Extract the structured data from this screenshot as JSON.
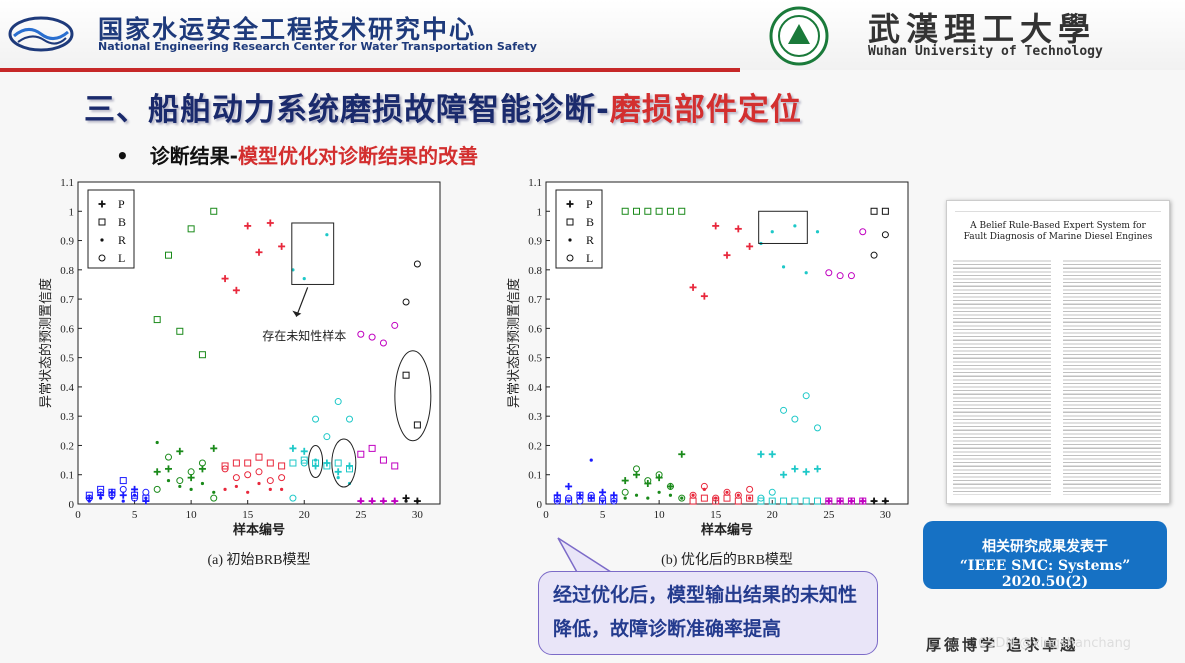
{
  "header": {
    "center_cn": "国家水运安全工程技术研究中心",
    "center_en": "National Engineering Research Center for Water Transportation Safety",
    "univ_cn": "武漢理工大學",
    "univ_en": "Wuhan University of Technology"
  },
  "slide": {
    "title_main": "三、船舶动力系统磨损故障智能诊断-",
    "title_highlight": "磨损部件定位",
    "bullet_symbol": "•",
    "bullet_main": "诊断结果-",
    "bullet_highlight": "模型优化对诊断结果的改善"
  },
  "chart_data": [
    {
      "type": "scatter",
      "caption": "(a)  初始BRB模型",
      "xlabel": "样本编号",
      "ylabel": "异常状态的预测置信度",
      "xlim": [
        0,
        32
      ],
      "ylim": [
        0,
        1.1
      ],
      "xticks": [
        "0",
        "5",
        "10",
        "15",
        "20",
        "25",
        "30"
      ],
      "yticks": [
        "0",
        "0.1",
        "0.2",
        "0.3",
        "0.4",
        "0.5",
        "0.6",
        "0.7",
        "0.8",
        "0.9",
        "1",
        "1.1"
      ],
      "legend": [
        "P",
        "B",
        "R",
        "L"
      ],
      "annotation": "存在未知性样本",
      "series": [
        {
          "name": "P",
          "color": "#1a1aff",
          "x": [
            1,
            2,
            3,
            4,
            5,
            6
          ],
          "y": [
            0.02,
            0.03,
            0.04,
            0.03,
            0.05,
            0.01
          ]
        },
        {
          "name": "B",
          "color": "#1a1aff",
          "x": [
            1,
            2,
            3,
            4,
            5,
            6
          ],
          "y": [
            0.03,
            0.05,
            0.04,
            0.08,
            0.03,
            0.02
          ]
        },
        {
          "name": "R",
          "color": "#1a1aff",
          "x": [
            1,
            2,
            3,
            4,
            5,
            6
          ],
          "y": [
            0.01,
            0.02,
            0.02,
            0.01,
            0.03,
            0.02
          ]
        },
        {
          "name": "L",
          "color": "#1a1aff",
          "x": [
            1,
            2,
            3,
            4,
            5,
            6
          ],
          "y": [
            0.02,
            0.04,
            0.03,
            0.05,
            0.02,
            0.04
          ]
        },
        {
          "name": "P",
          "color": "#1a8a1a",
          "x": [
            7,
            8,
            9,
            10,
            11,
            12
          ],
          "y": [
            0.11,
            0.12,
            0.18,
            0.09,
            0.12,
            0.19
          ]
        },
        {
          "name": "B",
          "color": "#1a8a1a",
          "x": [
            7,
            8,
            9,
            10,
            11,
            12
          ],
          "y": [
            0.63,
            0.85,
            0.59,
            0.94,
            0.51,
            1.0
          ]
        },
        {
          "name": "R",
          "color": "#1a8a1a",
          "x": [
            7,
            8,
            9,
            10,
            11,
            12
          ],
          "y": [
            0.21,
            0.08,
            0.06,
            0.05,
            0.07,
            0.04
          ]
        },
        {
          "name": "L",
          "color": "#1a8a1a",
          "x": [
            7,
            8,
            9,
            10,
            11,
            12
          ],
          "y": [
            0.05,
            0.16,
            0.08,
            0.11,
            0.14,
            0.02
          ]
        },
        {
          "name": "P",
          "color": "#e8283c",
          "x": [
            13,
            14,
            15,
            16,
            17,
            18
          ],
          "y": [
            0.77,
            0.73,
            0.95,
            0.86,
            0.96,
            0.88
          ]
        },
        {
          "name": "B",
          "color": "#e8283c",
          "x": [
            13,
            14,
            15,
            16,
            17,
            18
          ],
          "y": [
            0.13,
            0.14,
            0.14,
            0.16,
            0.14,
            0.13
          ]
        },
        {
          "name": "R",
          "color": "#e8283c",
          "x": [
            13,
            14,
            15,
            16,
            17,
            18
          ],
          "y": [
            0.05,
            0.06,
            0.04,
            0.07,
            0.05,
            0.05
          ]
        },
        {
          "name": "L",
          "color": "#e8283c",
          "x": [
            13,
            14,
            15,
            16,
            17,
            18
          ],
          "y": [
            0.12,
            0.09,
            0.1,
            0.11,
            0.08,
            0.09
          ]
        },
        {
          "name": "P",
          "color": "#1ec8c8",
          "x": [
            19,
            20,
            21,
            22,
            23,
            24
          ],
          "y": [
            0.19,
            0.18,
            0.13,
            0.14,
            0.11,
            0.13
          ]
        },
        {
          "name": "B",
          "color": "#1ec8c8",
          "x": [
            19,
            20,
            21,
            22,
            23,
            24
          ],
          "y": [
            0.14,
            0.15,
            0.14,
            0.13,
            0.14,
            0.12
          ]
        },
        {
          "name": "R",
          "color": "#1ec8c8",
          "x": [
            19,
            20,
            21,
            22,
            23,
            24
          ],
          "y": [
            0.8,
            0.77,
            0.15,
            0.92,
            0.09,
            0.07
          ]
        },
        {
          "name": "L",
          "color": "#1ec8c8",
          "x": [
            19,
            20,
            21,
            22,
            23,
            24
          ],
          "y": [
            0.02,
            0.14,
            0.29,
            0.23,
            0.35,
            0.29
          ]
        },
        {
          "name": "P",
          "color": "#c000c0",
          "x": [
            25,
            26,
            27,
            28
          ],
          "y": [
            0.01,
            0.01,
            0.01,
            0.01
          ]
        },
        {
          "name": "B",
          "color": "#c000c0",
          "x": [
            25,
            26,
            27,
            28
          ],
          "y": [
            0.17,
            0.19,
            0.15,
            0.13
          ]
        },
        {
          "name": "R",
          "color": "#c000c0",
          "x": [
            25,
            26,
            27,
            28
          ],
          "y": [
            0.01,
            0.01,
            0.01,
            0.01
          ]
        },
        {
          "name": "L",
          "color": "#c000c0",
          "x": [
            25,
            26,
            27,
            28
          ],
          "y": [
            0.58,
            0.57,
            0.55,
            0.61
          ]
        },
        {
          "name": "P",
          "color": "#111111",
          "x": [
            29,
            30
          ],
          "y": [
            0.02,
            0.01
          ]
        },
        {
          "name": "B",
          "color": "#111111",
          "x": [
            29,
            30
          ],
          "y": [
            0.44,
            0.27
          ]
        },
        {
          "name": "R",
          "color": "#111111",
          "x": [
            29,
            30
          ],
          "y": [
            0.01,
            0.01
          ]
        },
        {
          "name": "L",
          "color": "#111111",
          "x": [
            29,
            30
          ],
          "y": [
            0.69,
            0.82
          ]
        }
      ]
    },
    {
      "type": "scatter",
      "caption": "(b)  优化后的BRB模型",
      "xlabel": "样本编号",
      "ylabel": "异常状态的预测置信度",
      "xlim": [
        0,
        32
      ],
      "ylim": [
        0,
        1.1
      ],
      "xticks": [
        "0",
        "5",
        "10",
        "15",
        "20",
        "25",
        "30"
      ],
      "yticks": [
        "0",
        "0.1",
        "0.2",
        "0.3",
        "0.4",
        "0.5",
        "0.6",
        "0.7",
        "0.8",
        "0.9",
        "1",
        "1.1"
      ],
      "legend": [
        "P",
        "B",
        "R",
        "L"
      ],
      "series": [
        {
          "name": "P",
          "color": "#1a1aff",
          "x": [
            1,
            2,
            3,
            4,
            5,
            6
          ],
          "y": [
            0.03,
            0.06,
            0.03,
            0.02,
            0.04,
            0.03
          ]
        },
        {
          "name": "B",
          "color": "#1a1aff",
          "x": [
            1,
            2,
            3,
            4,
            5,
            6
          ],
          "y": [
            0.02,
            0.01,
            0.03,
            0.02,
            0.01,
            0.02
          ]
        },
        {
          "name": "R",
          "color": "#1a1aff",
          "x": [
            1,
            2,
            3,
            4,
            5,
            6
          ],
          "y": [
            0.01,
            0.01,
            0.02,
            0.15,
            0.01,
            0.01
          ]
        },
        {
          "name": "L",
          "color": "#1a1aff",
          "x": [
            1,
            2,
            3,
            4,
            5,
            6
          ],
          "y": [
            0.01,
            0.02,
            0.01,
            0.03,
            0.02,
            0.01
          ]
        },
        {
          "name": "P",
          "color": "#1a8a1a",
          "x": [
            7,
            8,
            9,
            10,
            11,
            12
          ],
          "y": [
            0.08,
            0.1,
            0.07,
            0.09,
            0.06,
            0.17
          ]
        },
        {
          "name": "B",
          "color": "#1a8a1a",
          "x": [
            7,
            8,
            9,
            10,
            11,
            12
          ],
          "y": [
            1.0,
            1.0,
            1.0,
            1.0,
            1.0,
            1.0
          ]
        },
        {
          "name": "R",
          "color": "#1a8a1a",
          "x": [
            7,
            8,
            9,
            10,
            11,
            12
          ],
          "y": [
            0.02,
            0.03,
            0.02,
            0.04,
            0.03,
            0.02
          ]
        },
        {
          "name": "L",
          "color": "#1a8a1a",
          "x": [
            7,
            8,
            9,
            10,
            11,
            12
          ],
          "y": [
            0.04,
            0.12,
            0.08,
            0.1,
            0.06,
            0.02
          ]
        },
        {
          "name": "P",
          "color": "#e8283c",
          "x": [
            13,
            14,
            15,
            16,
            17,
            18
          ],
          "y": [
            0.74,
            0.71,
            0.95,
            0.85,
            0.94,
            0.88
          ]
        },
        {
          "name": "B",
          "color": "#e8283c",
          "x": [
            13,
            14,
            15,
            16,
            17,
            18
          ],
          "y": [
            0.01,
            0.02,
            0.01,
            0.02,
            0.01,
            0.02
          ]
        },
        {
          "name": "R",
          "color": "#e8283c",
          "x": [
            13,
            14,
            15,
            16,
            17,
            18
          ],
          "y": [
            0.03,
            0.05,
            0.02,
            0.04,
            0.03,
            0.02
          ]
        },
        {
          "name": "L",
          "color": "#e8283c",
          "x": [
            13,
            14,
            15,
            16,
            17,
            18
          ],
          "y": [
            0.03,
            0.06,
            0.02,
            0.04,
            0.03,
            0.05
          ]
        },
        {
          "name": "P",
          "color": "#1ec8c8",
          "x": [
            19,
            20,
            21,
            22,
            23,
            24
          ],
          "y": [
            0.17,
            0.17,
            0.1,
            0.12,
            0.11,
            0.12
          ]
        },
        {
          "name": "B",
          "color": "#1ec8c8",
          "x": [
            19,
            20,
            21,
            22,
            23,
            24
          ],
          "y": [
            0.01,
            0.01,
            0.01,
            0.01,
            0.01,
            0.01
          ]
        },
        {
          "name": "R",
          "color": "#1ec8c8",
          "x": [
            19,
            20,
            21,
            22,
            23,
            24
          ],
          "y": [
            0.89,
            0.93,
            0.81,
            0.95,
            0.79,
            0.93
          ]
        },
        {
          "name": "L",
          "color": "#1ec8c8",
          "x": [
            19,
            20,
            21,
            22,
            23,
            24
          ],
          "y": [
            0.02,
            0.04,
            0.32,
            0.29,
            0.37,
            0.26
          ]
        },
        {
          "name": "P",
          "color": "#c000c0",
          "x": [
            25,
            26,
            27,
            28
          ],
          "y": [
            0.01,
            0.01,
            0.01,
            0.01
          ]
        },
        {
          "name": "B",
          "color": "#c000c0",
          "x": [
            25,
            26,
            27,
            28
          ],
          "y": [
            0.01,
            0.01,
            0.01,
            0.01
          ]
        },
        {
          "name": "R",
          "color": "#c000c0",
          "x": [
            25,
            26,
            27,
            28
          ],
          "y": [
            0.01,
            0.01,
            0.01,
            0.01
          ]
        },
        {
          "name": "L",
          "color": "#c000c0",
          "x": [
            25,
            26,
            27,
            28
          ],
          "y": [
            0.79,
            0.78,
            0.78,
            0.93
          ]
        },
        {
          "name": "P",
          "color": "#111111",
          "x": [
            29,
            30
          ],
          "y": [
            0.01,
            0.01
          ]
        },
        {
          "name": "B",
          "color": "#111111",
          "x": [
            29,
            30
          ],
          "y": [
            1.0,
            1.0
          ]
        },
        {
          "name": "R",
          "color": "#111111",
          "x": [
            29,
            30
          ],
          "y": [
            0.01,
            0.01
          ]
        },
        {
          "name": "L",
          "color": "#111111",
          "x": [
            29,
            30
          ],
          "y": [
            0.85,
            0.92
          ]
        }
      ]
    }
  ],
  "paper": {
    "title": "A Belief Rule-Based Expert System for Fault Diagnosis of Marine Diesel Engines"
  },
  "publication": {
    "line1": "相关研究成果发表于",
    "line2": "“IEEE SMC: Systems” 2020.50(2)"
  },
  "callout": {
    "text": "经过优化后，模型输出结果的未知性降低，故障诊断准确率提高"
  },
  "footer": {
    "motto": "厚德博学  追求卓越",
    "watermark": "CSDN @xingshanchang"
  }
}
